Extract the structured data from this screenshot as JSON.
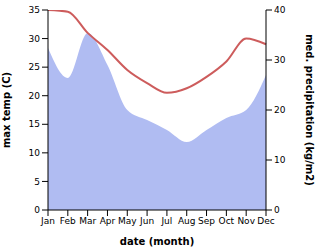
{
  "chart_data": {
    "type": "line",
    "xlabel": "date (month)",
    "ylabel": "max temp (C)",
    "y2label": "med. precipitation (kg/m2)",
    "categories": [
      "Jan",
      "Feb",
      "Mar",
      "Apr",
      "May",
      "Jun",
      "Jul",
      "Aug",
      "Sep",
      "Oct",
      "Nov",
      "Dec"
    ],
    "ylim": [
      0,
      35
    ],
    "yticks": [
      0,
      5,
      10,
      15,
      20,
      25,
      30,
      35
    ],
    "y2lim": [
      0,
      40
    ],
    "y2ticks": [
      0,
      10,
      20,
      30,
      40
    ],
    "grid": false,
    "series": [
      {
        "name": "max temp",
        "type": "line",
        "color": "#cd5c5c",
        "values": [
          35,
          34.7,
          31,
          28,
          24.5,
          22.2,
          20.5,
          21.3,
          23.3,
          26,
          30,
          29
        ]
      },
      {
        "name": "med. precipitation",
        "type": "area",
        "axis": "y2",
        "color": "#b0bcf2",
        "values": [
          32.4,
          26.4,
          35.4,
          29,
          20,
          18,
          16,
          13.6,
          16,
          18.4,
          20,
          27
        ]
      }
    ]
  }
}
